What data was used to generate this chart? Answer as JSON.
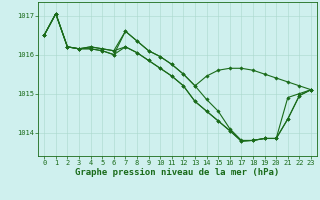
{
  "line_color": "#1a6b1a",
  "marker": "D",
  "marker_size": 1.8,
  "linewidth": 0.8,
  "background_color": "#cff0ee",
  "grid_color": "#aad8cc",
  "xlabel": "Graphe pression niveau de la mer (hPa)",
  "xlabel_fontsize": 6.5,
  "tick_fontsize": 5.0,
  "yticks": [
    1014,
    1015,
    1016,
    1017
  ],
  "ylim": [
    1013.4,
    1017.35
  ],
  "xlim": [
    -0.5,
    23.5
  ],
  "series": [
    [
      1016.5,
      1017.05,
      1016.2,
      1016.15,
      1016.15,
      1016.1,
      1016.0,
      1016.6,
      1016.35,
      1016.1,
      1015.95,
      1015.75,
      1015.5,
      1015.2,
      1014.85,
      1014.55,
      1014.1,
      1013.8,
      1013.8,
      1013.85,
      1013.85,
      1014.9,
      1015.0,
      1015.1
    ],
    [
      1016.5,
      1017.05,
      1016.2,
      1016.15,
      1016.15,
      1016.1,
      1016.0,
      1016.2,
      1016.05,
      1015.85,
      1015.65,
      1015.45,
      1015.2,
      1014.8,
      1014.55,
      1014.3,
      1014.05,
      1013.78,
      1013.8,
      1013.85,
      1013.85,
      1014.35,
      1014.95,
      1015.1
    ],
    [
      1016.5,
      1017.05,
      1016.2,
      1016.15,
      1016.2,
      1016.15,
      1016.1,
      1016.2,
      1016.05,
      1015.85,
      1015.65,
      1015.45,
      1015.2,
      1014.8,
      1014.55,
      1014.3,
      1014.05,
      1013.78,
      1013.8,
      1013.85,
      1013.85,
      1014.35,
      1014.95,
      1015.1
    ],
    [
      1016.5,
      1017.05,
      1016.2,
      1016.15,
      1016.2,
      1016.15,
      1016.1,
      1016.6,
      1016.35,
      1016.1,
      1015.95,
      1015.75,
      1015.5,
      1015.2,
      1015.45,
      1015.6,
      1015.65,
      1015.65,
      1015.6,
      1015.5,
      1015.4,
      1015.3,
      1015.2,
      1015.1
    ]
  ]
}
